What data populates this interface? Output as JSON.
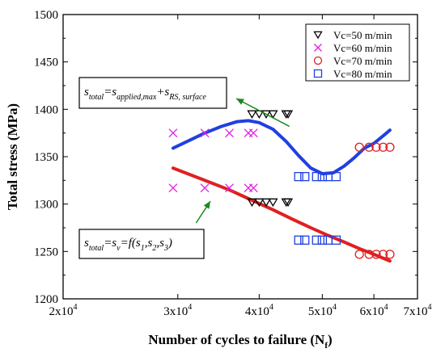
{
  "chart_data": {
    "type": "scatter",
    "xscale": "log",
    "xlim": [
      20000,
      70000
    ],
    "ylim": [
      1200,
      1500
    ],
    "xlabel": "Number of cycles to failure (N",
    "xlabel_sub": "f",
    "xlabel_close": ")",
    "ylabel": "Total stress (MPa)",
    "x_ticks": [
      {
        "value": 20000,
        "mant": "2x10",
        "exp": "4"
      },
      {
        "value": 30000,
        "mant": "3x10",
        "exp": "4"
      },
      {
        "value": 40000,
        "mant": "4x10",
        "exp": "4"
      },
      {
        "value": 50000,
        "mant": "5x10",
        "exp": "4"
      },
      {
        "value": 60000,
        "mant": "6x10",
        "exp": "4"
      },
      {
        "value": 70000,
        "mant": "7x10",
        "exp": "4"
      }
    ],
    "y_ticks": [
      1200,
      1250,
      1300,
      1350,
      1400,
      1450,
      1500
    ],
    "legend_position": "top-right",
    "series": [
      {
        "name": "Vc=50 m/min",
        "marker": "triangle-down",
        "color": "#000000",
        "points": [
          [
            39000,
            1395
          ],
          [
            40000,
            1395
          ],
          [
            41000,
            1395
          ],
          [
            42000,
            1395
          ],
          [
            44000,
            1395
          ],
          [
            44300,
            1395
          ],
          [
            39000,
            1302
          ],
          [
            40000,
            1302
          ],
          [
            41000,
            1302
          ],
          [
            42000,
            1302
          ],
          [
            44000,
            1302
          ],
          [
            44300,
            1302
          ]
        ]
      },
      {
        "name": "Vc=60 m/min",
        "marker": "x",
        "color": "#e020e0",
        "points": [
          [
            29500,
            1375
          ],
          [
            33000,
            1375
          ],
          [
            36000,
            1375
          ],
          [
            38500,
            1375
          ],
          [
            39200,
            1375
          ],
          [
            29500,
            1317
          ],
          [
            33000,
            1317
          ],
          [
            36000,
            1317
          ],
          [
            38500,
            1317
          ],
          [
            39200,
            1317
          ]
        ]
      },
      {
        "name": "Vc=70 m/min",
        "marker": "circle",
        "color": "#e02020",
        "points": [
          [
            57000,
            1360
          ],
          [
            59000,
            1360
          ],
          [
            60500,
            1360
          ],
          [
            62000,
            1360
          ],
          [
            63500,
            1360
          ],
          [
            57000,
            1247
          ],
          [
            59000,
            1247
          ],
          [
            60500,
            1247
          ],
          [
            62000,
            1247
          ],
          [
            63500,
            1247
          ]
        ]
      },
      {
        "name": "Vc=80 m/min",
        "marker": "square",
        "color": "#2040e0",
        "points": [
          [
            46000,
            1329
          ],
          [
            47000,
            1329
          ],
          [
            49000,
            1329
          ],
          [
            50000,
            1329
          ],
          [
            51000,
            1329
          ],
          [
            52500,
            1329
          ],
          [
            46000,
            1262
          ],
          [
            47000,
            1262
          ],
          [
            49000,
            1262
          ],
          [
            50000,
            1262
          ],
          [
            51000,
            1262
          ],
          [
            52500,
            1262
          ]
        ]
      }
    ],
    "fits": [
      {
        "color": "#2040e0",
        "points": [
          [
            29500,
            1359
          ],
          [
            31000,
            1366
          ],
          [
            33000,
            1375
          ],
          [
            35000,
            1382
          ],
          [
            37000,
            1387
          ],
          [
            38500,
            1388
          ],
          [
            40000,
            1386
          ],
          [
            42000,
            1379
          ],
          [
            44000,
            1366
          ],
          [
            46000,
            1351
          ],
          [
            48000,
            1338
          ],
          [
            50000,
            1332
          ],
          [
            52000,
            1333
          ],
          [
            54000,
            1340
          ],
          [
            56000,
            1349
          ],
          [
            58000,
            1359
          ],
          [
            60000,
            1364
          ],
          [
            62000,
            1372
          ],
          [
            63500,
            1378
          ]
        ]
      },
      {
        "color": "#e02020",
        "points": [
          [
            29500,
            1338
          ],
          [
            33000,
            1325
          ],
          [
            36000,
            1315
          ],
          [
            39000,
            1304
          ],
          [
            42000,
            1294
          ],
          [
            45000,
            1284
          ],
          [
            48000,
            1275
          ],
          [
            51000,
            1267
          ],
          [
            54000,
            1260
          ],
          [
            57000,
            1253
          ],
          [
            60000,
            1247
          ],
          [
            63500,
            1240
          ]
        ]
      }
    ],
    "annotations": [
      {
        "name": "total-stress-applied-equation",
        "parts": [
          {
            "t": "s",
            "k": "b"
          },
          {
            "t": "total",
            "k": "sub"
          },
          {
            "t": "=s",
            "k": "b"
          },
          {
            "t": "applied,max",
            "k": "sub"
          },
          {
            "t": "+s",
            "k": "b"
          },
          {
            "t": "RS, surface",
            "k": "sub"
          }
        ],
        "target": [
          44500,
          1382
        ]
      },
      {
        "name": "total-stress-function-equation",
        "parts": [
          {
            "t": "s",
            "k": "b"
          },
          {
            "t": "total",
            "k": "sub"
          },
          {
            "t": "=s",
            "k": "b"
          },
          {
            "t": "v",
            "k": "sub"
          },
          {
            "t": "=f(s",
            "k": "b"
          },
          {
            "t": "1",
            "k": "sub"
          },
          {
            "t": ",s",
            "k": "b"
          },
          {
            "t": "2",
            "k": "sub"
          },
          {
            "t": ",s",
            "k": "b"
          },
          {
            "t": "3",
            "k": "sub"
          },
          {
            "t": ")",
            "k": "b"
          }
        ],
        "target": [
          32000,
          1280
        ]
      }
    ]
  }
}
